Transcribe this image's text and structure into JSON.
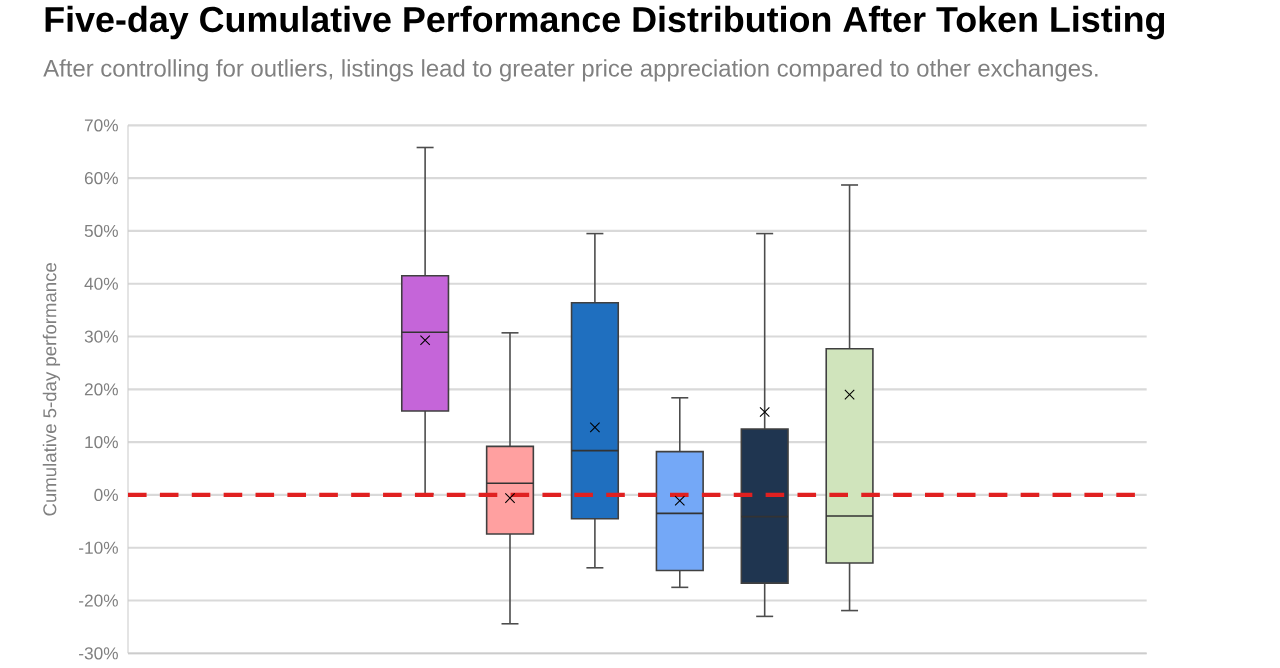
{
  "chart_data": {
    "type": "box",
    "title": "Five-day Cumulative Performance Distribution After Token Listing",
    "subtitle": "After controlling for outliers, listings lead to greater price appreciation compared to other exchanges.",
    "ylabel": "Cumulative 5-day performance",
    "categories": [
      null,
      null,
      null,
      null,
      null,
      null,
      null,
      null,
      null,
      null,
      null,
      null
    ],
    "colors": [
      null,
      null,
      null,
      "#c565d9",
      "#ffa0a0",
      "#1f6fbf",
      "#74a8f7",
      "#1f3550",
      "#d0e4bc",
      null,
      null,
      null
    ],
    "boxes": [
      null,
      null,
      null,
      {
        "low": 0.2,
        "q1": 15.9,
        "median": 30.8,
        "q3": 41.5,
        "high": 65.8,
        "mean": 29.3
      },
      {
        "low": -24.4,
        "q1": -7.4,
        "median": 2.2,
        "q3": 9.2,
        "high": 30.7,
        "mean": -0.6
      },
      {
        "low": -13.8,
        "q1": -4.5,
        "median": 8.4,
        "q3": 36.4,
        "high": 49.5,
        "mean": 12.8
      },
      {
        "low": -17.5,
        "q1": -14.3,
        "median": -3.5,
        "q3": 8.2,
        "high": 18.4,
        "mean": -1.1
      },
      {
        "low": -23.0,
        "q1": -16.7,
        "median": -4.1,
        "q3": 12.5,
        "high": 49.5,
        "mean": 15.7
      },
      {
        "low": -21.9,
        "q1": -12.9,
        "median": -4.0,
        "q3": 27.7,
        "high": 58.7,
        "mean": 19.0
      },
      null,
      null,
      null
    ],
    "ylim": [
      -30,
      70
    ],
    "yticks": [
      {
        "value": -30,
        "label": "-30%"
      },
      {
        "value": -20,
        "label": "-20%"
      },
      {
        "value": -10,
        "label": "-10%"
      },
      {
        "value": 0,
        "label": "0%"
      },
      {
        "value": 10,
        "label": "10%"
      },
      {
        "value": 20,
        "label": "20%"
      },
      {
        "value": 30,
        "label": "30%"
      },
      {
        "value": 40,
        "label": "40%"
      },
      {
        "value": 50,
        "label": "50%"
      },
      {
        "value": 60,
        "label": "60%"
      },
      {
        "value": 70,
        "label": "70%"
      }
    ],
    "grid": "y",
    "ref_lines": [
      {
        "axis": "y",
        "value": 0,
        "color": "#e02020",
        "line_style": "dashed"
      }
    ]
  }
}
